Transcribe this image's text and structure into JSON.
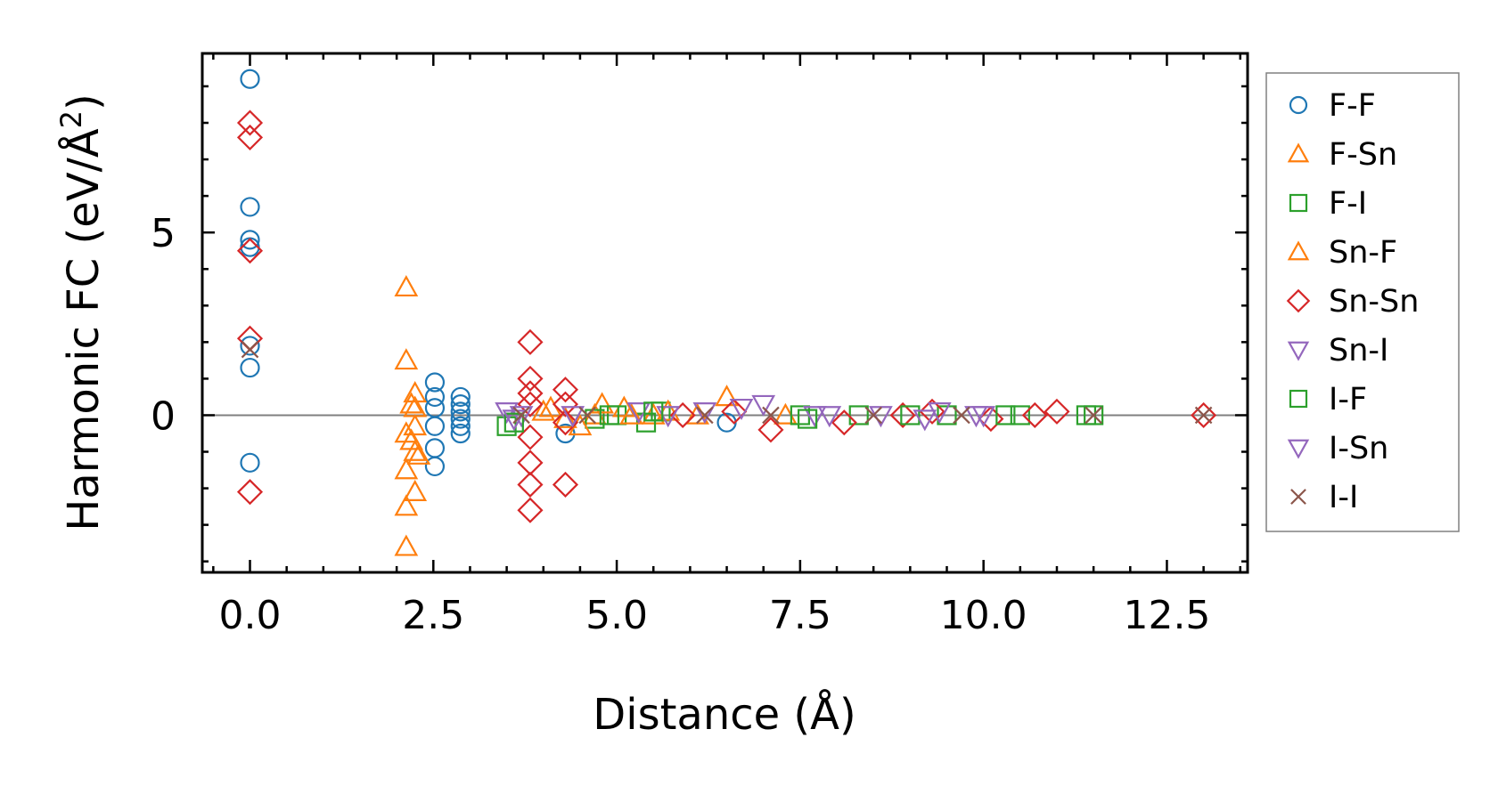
{
  "chart_data": {
    "type": "scatter",
    "xlabel": "Distance (Å)",
    "ylabel_main": "Harmonic FC (eV/Å",
    "ylabel_sup": "2",
    "ylabel_end": ")",
    "xlim": [
      -0.65,
      13.6
    ],
    "ylim": [
      -4.3,
      9.9
    ],
    "xticks": [
      0.0,
      2.5,
      5.0,
      7.5,
      10.0,
      12.5
    ],
    "xtick_labels": [
      "0.0",
      "2.5",
      "5.0",
      "7.5",
      "10.0",
      "12.5"
    ],
    "yticks": [
      0,
      5
    ],
    "ytick_labels": [
      "0",
      "5"
    ],
    "grid": false,
    "zero_line": true,
    "legend_position": "outside-right",
    "series": [
      {
        "name": "F-F",
        "marker": "circle",
        "color": "#1f77b4",
        "points": [
          [
            0,
            9.2
          ],
          [
            0,
            5.7
          ],
          [
            0,
            4.8
          ],
          [
            0,
            4.6
          ],
          [
            0,
            1.9
          ],
          [
            0,
            1.3
          ],
          [
            0,
            -1.3
          ],
          [
            2.52,
            0.9
          ],
          [
            2.52,
            0.5
          ],
          [
            2.52,
            0.2
          ],
          [
            2.52,
            -0.3
          ],
          [
            2.52,
            -0.9
          ],
          [
            2.52,
            -1.4
          ],
          [
            2.87,
            0.5
          ],
          [
            2.87,
            0.3
          ],
          [
            2.87,
            0.1
          ],
          [
            2.87,
            -0.1
          ],
          [
            2.87,
            -0.3
          ],
          [
            2.87,
            -0.5
          ],
          [
            4.3,
            -0.5
          ],
          [
            6.5,
            -0.2
          ]
        ]
      },
      {
        "name": "F-Sn",
        "marker": "triangle-up",
        "color": "#ff7f0e",
        "points": [
          [
            2.13,
            3.5
          ],
          [
            2.13,
            1.5
          ],
          [
            2.13,
            -0.5
          ],
          [
            2.13,
            -1.5
          ],
          [
            2.13,
            -2.5
          ],
          [
            2.13,
            -3.6
          ],
          [
            2.25,
            0.6
          ],
          [
            2.25,
            0.2
          ],
          [
            2.25,
            -0.3
          ],
          [
            2.25,
            -1.0
          ],
          [
            2.25,
            -2.1
          ],
          [
            4.0,
            0.1
          ],
          [
            4.3,
            -0.1
          ],
          [
            4.7,
            0.0
          ],
          [
            5.1,
            0.2
          ],
          [
            5.5,
            0.0
          ],
          [
            6.5,
            0.5
          ],
          [
            7.3,
            0.0
          ]
        ]
      },
      {
        "name": "F-I",
        "marker": "square",
        "color": "#2ca02c",
        "points": [
          [
            3.5,
            -0.3
          ],
          [
            4.7,
            -0.1
          ],
          [
            5.0,
            0.0
          ],
          [
            5.4,
            -0.2
          ],
          [
            5.6,
            0.1
          ],
          [
            7.5,
            0.0
          ],
          [
            8.3,
            0.0
          ],
          [
            9.5,
            0.0
          ],
          [
            10.5,
            0.0
          ],
          [
            11.5,
            0.0
          ]
        ]
      },
      {
        "name": "Sn-F",
        "marker": "triangle-up",
        "color": "#ff7f0e",
        "points": [
          [
            2.2,
            0.3
          ],
          [
            2.2,
            -0.7
          ],
          [
            2.3,
            -1.1
          ],
          [
            4.1,
            0.2
          ],
          [
            4.5,
            -0.3
          ],
          [
            4.8,
            0.3
          ],
          [
            5.2,
            0.0
          ],
          [
            5.7,
            0.1
          ],
          [
            6.1,
            0.0
          ]
        ]
      },
      {
        "name": "Sn-Sn",
        "marker": "diamond",
        "color": "#d62728",
        "points": [
          [
            0,
            8.0
          ],
          [
            0,
            7.6
          ],
          [
            0,
            4.5
          ],
          [
            0,
            2.1
          ],
          [
            0,
            -2.1
          ],
          [
            3.82,
            2.0
          ],
          [
            3.82,
            1.0
          ],
          [
            3.82,
            0.6
          ],
          [
            3.82,
            0.3
          ],
          [
            3.82,
            -0.6
          ],
          [
            3.82,
            -1.3
          ],
          [
            3.82,
            -1.9
          ],
          [
            3.82,
            -2.6
          ],
          [
            4.3,
            0.7
          ],
          [
            4.3,
            0.3
          ],
          [
            4.3,
            -0.2
          ],
          [
            4.3,
            -1.9
          ],
          [
            5.9,
            0.0
          ],
          [
            6.6,
            0.1
          ],
          [
            7.1,
            -0.4
          ],
          [
            8.1,
            -0.2
          ],
          [
            8.9,
            0.0
          ],
          [
            9.3,
            0.1
          ],
          [
            10.1,
            -0.1
          ],
          [
            10.7,
            0.0
          ],
          [
            11.0,
            0.1
          ],
          [
            13.0,
            0.0
          ]
        ]
      },
      {
        "name": "Sn-I",
        "marker": "triangle-down",
        "color": "#9467bd",
        "points": [
          [
            3.5,
            0.1
          ],
          [
            3.7,
            0.0
          ],
          [
            5.3,
            0.1
          ],
          [
            5.7,
            0.0
          ],
          [
            6.7,
            0.2
          ],
          [
            7.0,
            0.3
          ],
          [
            7.7,
            0.0
          ],
          [
            8.6,
            0.0
          ],
          [
            9.4,
            0.1
          ],
          [
            9.9,
            0.0
          ]
        ]
      },
      {
        "name": "I-F",
        "marker": "square",
        "color": "#2ca02c",
        "points": [
          [
            3.6,
            -0.2
          ],
          [
            4.9,
            0.0
          ],
          [
            5.5,
            0.1
          ],
          [
            7.6,
            -0.1
          ],
          [
            9.0,
            0.0
          ],
          [
            10.3,
            0.0
          ],
          [
            11.4,
            0.0
          ]
        ]
      },
      {
        "name": "I-Sn",
        "marker": "triangle-down",
        "color": "#9467bd",
        "points": [
          [
            3.6,
            -0.1
          ],
          [
            4.4,
            0.0
          ],
          [
            6.2,
            0.1
          ],
          [
            7.9,
            0.0
          ],
          [
            9.2,
            -0.1
          ],
          [
            10.0,
            0.0
          ]
        ]
      },
      {
        "name": "I-I",
        "marker": "x",
        "color": "#8c564b",
        "points": [
          [
            0,
            1.8
          ],
          [
            3.7,
            0.0
          ],
          [
            4.6,
            0.0
          ],
          [
            6.2,
            0.0
          ],
          [
            7.1,
            0.0
          ],
          [
            8.5,
            0.0
          ],
          [
            9.7,
            0.0
          ],
          [
            11.5,
            0.0
          ],
          [
            13.0,
            0.0
          ]
        ]
      }
    ]
  }
}
